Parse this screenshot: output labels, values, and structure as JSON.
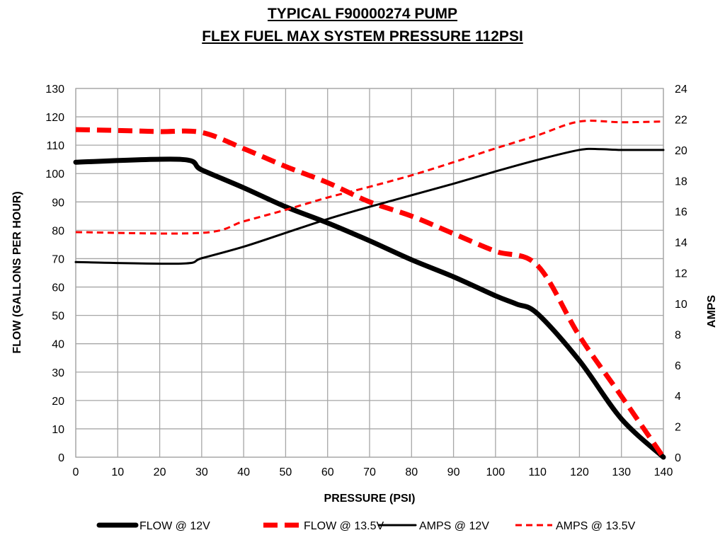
{
  "chart_data": {
    "type": "line",
    "title": "TYPICAL F90000274 PUMP",
    "subtitle": "FLEX FUEL MAX SYSTEM PRESSURE 112PSI",
    "xlabel": "PRESSURE (PSI)",
    "ylabel": "FLOW (GALLONS PER HOUR)",
    "y2label": "AMPS",
    "xlim": [
      0,
      140
    ],
    "ylim": [
      0,
      130
    ],
    "y2lim": [
      0,
      24
    ],
    "xticks": [
      0,
      10,
      20,
      30,
      40,
      50,
      60,
      70,
      80,
      90,
      100,
      110,
      120,
      130,
      140
    ],
    "yticks": [
      0,
      10,
      20,
      30,
      40,
      50,
      60,
      70,
      80,
      90,
      100,
      110,
      120,
      130
    ],
    "y2ticks": [
      0,
      2,
      4,
      6,
      8,
      10,
      12,
      14,
      16,
      18,
      20,
      22,
      24
    ],
    "grid": true,
    "legend_position": "bottom",
    "series": [
      {
        "name": "FLOW @ 12V",
        "axis": "left",
        "color": "#000000",
        "style": "solid",
        "weight": "thick",
        "x": [
          0,
          25,
          30,
          40,
          50,
          60,
          70,
          80,
          90,
          100,
          105,
          110,
          120,
          130,
          140
        ],
        "y": [
          104,
          105,
          101.3,
          95,
          88.3,
          82.6,
          76.3,
          69.6,
          63.6,
          56.9,
          54,
          50.6,
          34,
          13.5,
          0
        ]
      },
      {
        "name": "FLOW @ 13.5V",
        "axis": "left",
        "color": "#ff0000",
        "style": "dashed",
        "weight": "thick",
        "x": [
          0,
          10,
          20,
          30,
          40,
          50,
          60,
          70,
          80,
          90,
          100,
          110,
          120,
          130,
          140
        ],
        "y": [
          115.5,
          115.2,
          114.8,
          114.5,
          108.8,
          102.5,
          96.8,
          90,
          85,
          78.8,
          72.6,
          67.6,
          42.7,
          21.5,
          0
        ]
      },
      {
        "name": "AMPS @ 12V",
        "axis": "right",
        "color": "#000000",
        "style": "solid",
        "weight": "thin",
        "x": [
          0,
          25,
          30,
          40,
          50,
          60,
          70,
          80,
          90,
          100,
          110,
          120,
          125,
          130,
          140
        ],
        "y": [
          12.7,
          12.6,
          12.95,
          13.7,
          14.6,
          15.5,
          16.3,
          17.05,
          17.8,
          18.6,
          19.35,
          20,
          20.05,
          20,
          20
        ]
      },
      {
        "name": "AMPS @ 13.5V",
        "axis": "right",
        "color": "#ff0000",
        "style": "dashed",
        "weight": "thin",
        "x": [
          0,
          30,
          40,
          50,
          60,
          70,
          80,
          90,
          100,
          110,
          120,
          130,
          140
        ],
        "y": [
          14.65,
          14.6,
          15.35,
          16.1,
          16.9,
          17.6,
          18.35,
          19.2,
          20.1,
          20.95,
          21.85,
          21.8,
          21.85
        ]
      }
    ]
  }
}
